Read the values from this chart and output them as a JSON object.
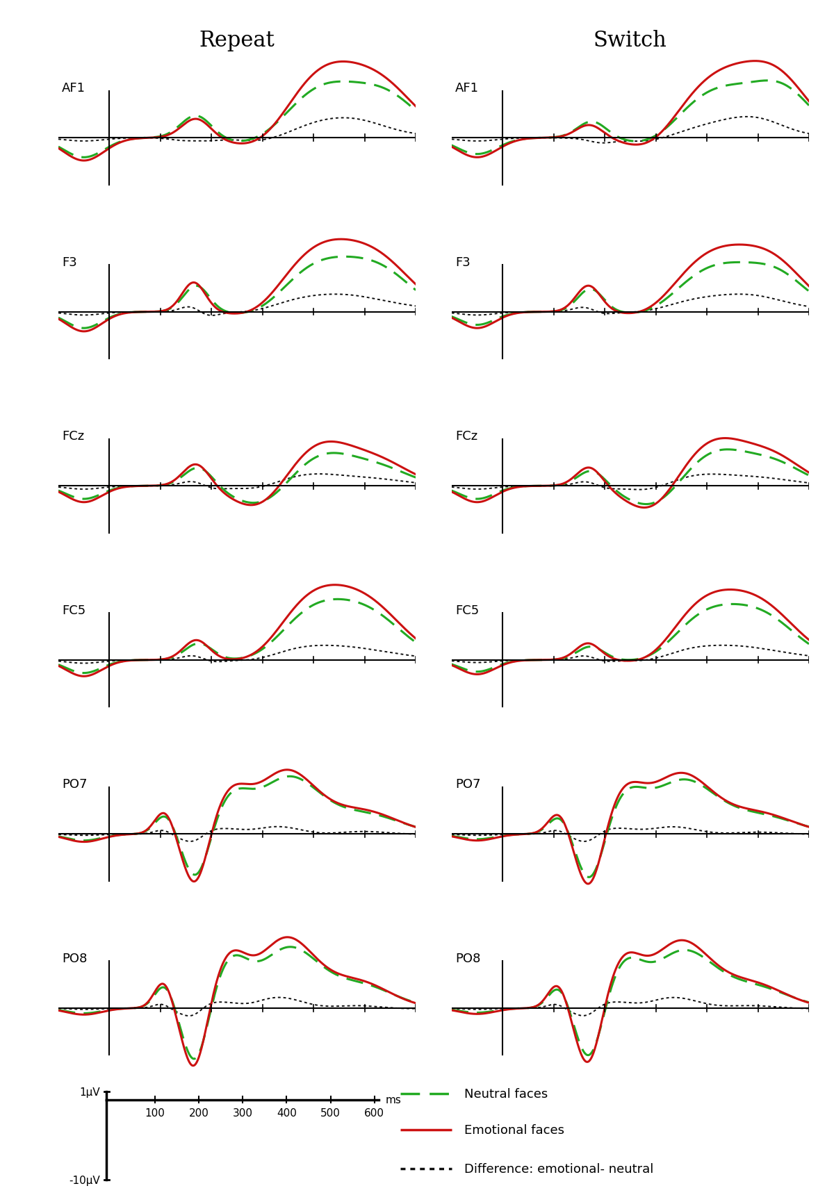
{
  "electrodes": [
    "AF1",
    "F3",
    "FCz",
    "FC5",
    "PO7",
    "PO8"
  ],
  "conditions": [
    "Repeat",
    "Switch"
  ],
  "title_repeat": "Repeat",
  "title_switch": "Switch",
  "colors": {
    "neutral": "#22aa22",
    "emotional": "#cc1111",
    "difference": "#111111"
  },
  "legend_labels": [
    "Neutral faces",
    "Emotional faces",
    "Difference: emotional- neutral"
  ],
  "background_color": "#ffffff"
}
